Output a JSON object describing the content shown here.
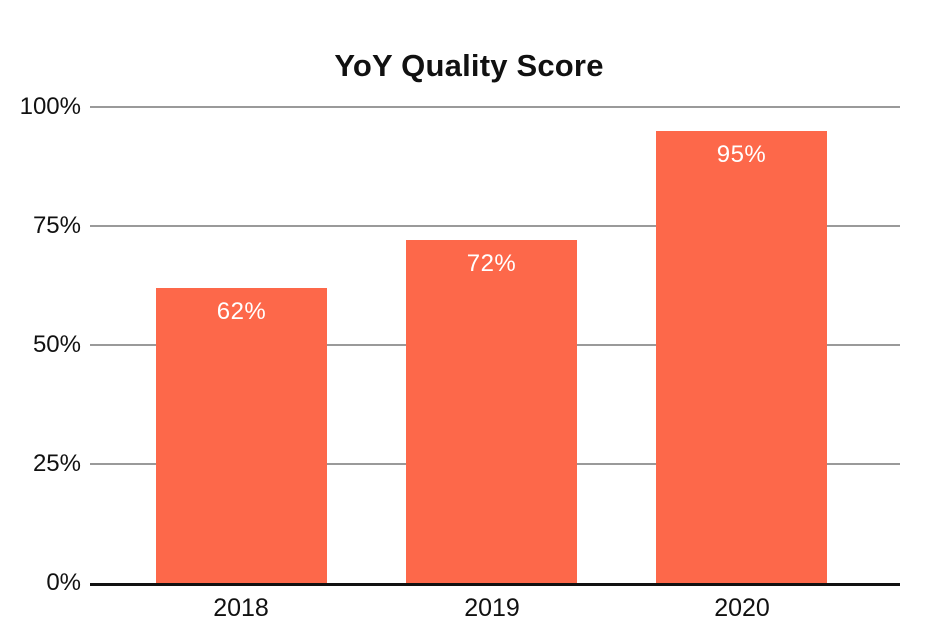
{
  "chart_data": {
    "type": "bar",
    "title": "YoY Quality Score",
    "categories": [
      "2018",
      "2019",
      "2020"
    ],
    "values": [
      62,
      72,
      95
    ],
    "value_labels": [
      "62%",
      "72%",
      "95%"
    ],
    "y_ticks": [
      {
        "value": 0,
        "label": "0%"
      },
      {
        "value": 25,
        "label": "25%"
      },
      {
        "value": 50,
        "label": "50%"
      },
      {
        "value": 75,
        "label": "75%"
      },
      {
        "value": 100,
        "label": "100%"
      }
    ],
    "ylim": [
      0,
      100
    ],
    "xlabel": "",
    "ylabel": "",
    "grid": true,
    "legend": false,
    "colors": {
      "bar": "#FD684A",
      "value_label": "#FFFFFF",
      "gridline": "#9A9A9A",
      "axis": "#111111",
      "text": "#111111",
      "background": "#FFFFFF"
    }
  }
}
